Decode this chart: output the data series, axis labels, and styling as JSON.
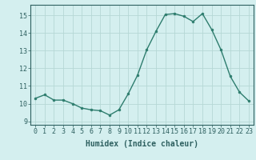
{
  "x": [
    0,
    1,
    2,
    3,
    4,
    5,
    6,
    7,
    8,
    9,
    10,
    11,
    12,
    13,
    14,
    15,
    16,
    17,
    18,
    19,
    20,
    21,
    22,
    23
  ],
  "y": [
    10.3,
    10.5,
    10.2,
    10.2,
    10.0,
    9.75,
    9.65,
    9.6,
    9.35,
    9.65,
    10.55,
    11.6,
    13.05,
    14.1,
    15.05,
    15.1,
    14.95,
    14.65,
    15.1,
    14.2,
    13.05,
    11.55,
    10.65,
    10.15
  ],
  "title": "",
  "xlabel": "Humidex (Indice chaleur)",
  "ylabel": "",
  "ylim": [
    8.8,
    15.6
  ],
  "xlim": [
    -0.5,
    23.5
  ],
  "line_color": "#2e7d6e",
  "marker_color": "#2e7d6e",
  "bg_color": "#d4efef",
  "grid_color": "#b5d8d5",
  "tick_label_color": "#2e6060",
  "axis_color": "#2e6060",
  "yticks": [
    9,
    10,
    11,
    12,
    13,
    14,
    15
  ],
  "xticks": [
    0,
    1,
    2,
    3,
    4,
    5,
    6,
    7,
    8,
    9,
    10,
    11,
    12,
    13,
    14,
    15,
    16,
    17,
    18,
    19,
    20,
    21,
    22,
    23
  ],
  "label_fontsize": 7.0,
  "tick_fontsize": 6.0
}
